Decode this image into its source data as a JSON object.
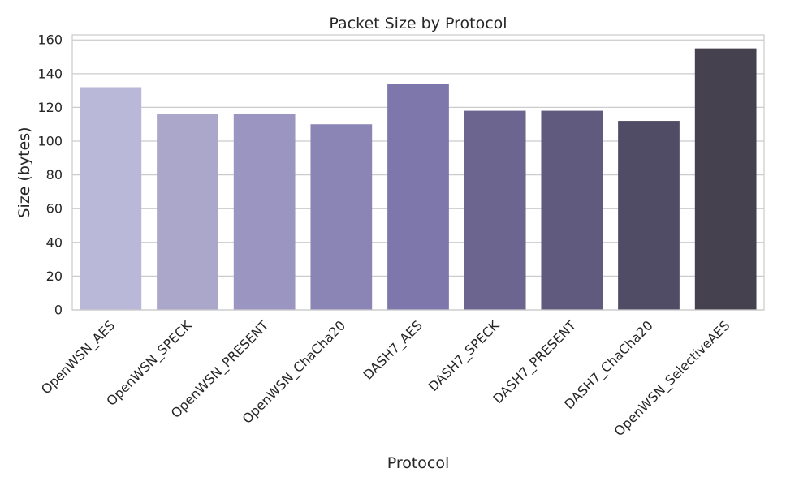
{
  "chart_data": {
    "type": "bar",
    "title": "Packet Size by Protocol",
    "xlabel": "Protocol",
    "ylabel": "Size (bytes)",
    "categories": [
      "OpenWSN_AES",
      "OpenWSN_SPECK",
      "OpenWSN_PRESENT",
      "OpenWSN_ChaCha20",
      "DASH7_AES",
      "DASH7_SPECK",
      "DASH7_PRESENT",
      "DASH7_ChaCha20",
      "OpenWSN_SelectiveAES"
    ],
    "values": [
      132,
      116,
      116,
      110,
      134,
      118,
      118,
      112,
      155
    ],
    "colors": [
      "#bab8d8",
      "#aba7cb",
      "#9b95c2",
      "#8b85b5",
      "#7e77ac",
      "#6b6590",
      "#5f5a7e",
      "#504c66",
      "#45414f"
    ],
    "ylim": [
      0,
      163
    ],
    "yticks": [
      0,
      20,
      40,
      60,
      80,
      100,
      120,
      140,
      160
    ],
    "grid": true,
    "legend": "none"
  }
}
